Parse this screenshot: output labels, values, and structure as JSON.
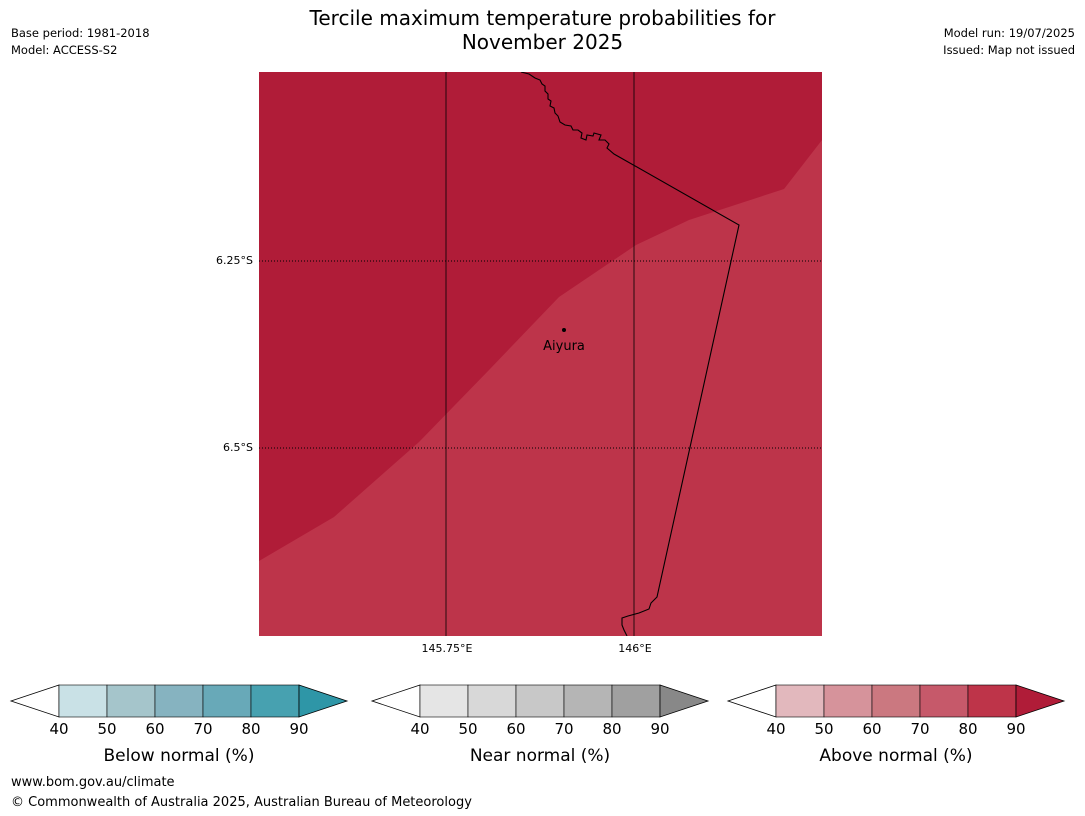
{
  "title": {
    "line1": "Tercile maximum temperature probabilities for",
    "line2": "November 2025"
  },
  "meta_left": {
    "base_period": "Base period: 1981-2018",
    "model": "Model: ACCESS-S2"
  },
  "meta_right": {
    "model_run": "Model run: 19/07/2025",
    "issued": "Issued: Map not issued"
  },
  "map": {
    "lat_labels": [
      "6.25°S",
      "6.5°S"
    ],
    "lon_labels": [
      "145.75°E",
      "146°E"
    ],
    "place": {
      "name": "Aiyura"
    },
    "colors": {
      "above_80_90": "#b01c38",
      "above_70_80": "#bd344a",
      "border": "#000000"
    }
  },
  "colorbars": [
    {
      "label": "Below normal (%)",
      "ticks": [
        "40",
        "50",
        "60",
        "70",
        "80",
        "90"
      ],
      "colors": [
        "#c9e1e6",
        "#a5c5cb",
        "#86b3c0",
        "#68a9b8",
        "#47a1b0",
        "#2e96a7"
      ]
    },
    {
      "label": "Near normal (%)",
      "ticks": [
        "40",
        "50",
        "60",
        "70",
        "80",
        "90"
      ],
      "colors": [
        "#e5e5e5",
        "#d8d8d8",
        "#c8c8c8",
        "#b5b5b5",
        "#a0a0a0",
        "#888888"
      ]
    },
    {
      "label": "Above normal (%)",
      "ticks": [
        "40",
        "50",
        "60",
        "70",
        "80",
        "90"
      ],
      "colors": [
        "#e2b8bd",
        "#d6939b",
        "#cb7880",
        "#c6596a",
        "#be3449",
        "#b01c38"
      ]
    }
  ],
  "footer": {
    "url": "www.bom.gov.au/climate",
    "copyright": "© Commonwealth of Australia 2025, Australian Bureau of Meteorology"
  }
}
